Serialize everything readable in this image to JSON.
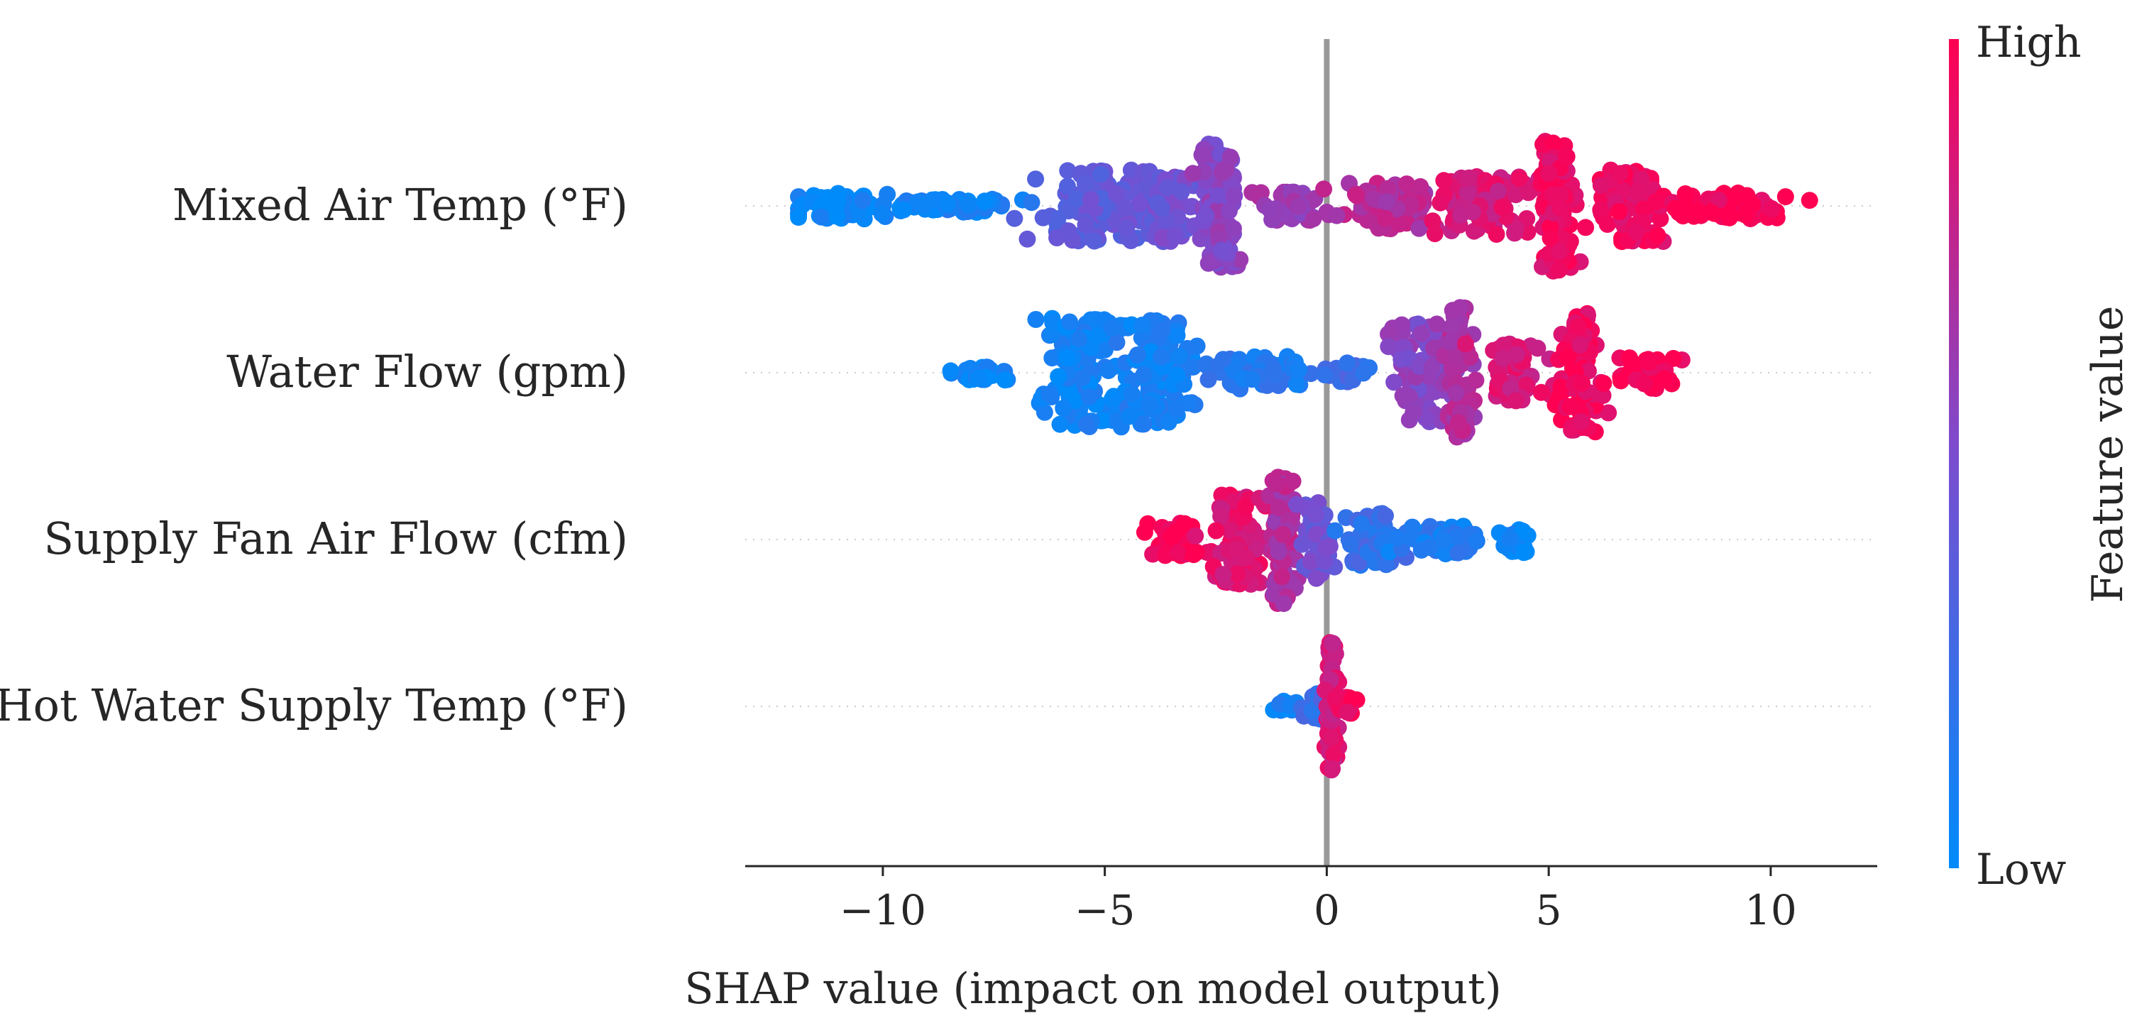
{
  "chart_data": {
    "type": "scatter",
    "subtype": "shap-beeswarm",
    "title": "",
    "xlabel": "SHAP value (impact on model output)",
    "xlim": [
      -13.1,
      12.4
    ],
    "xticks": [
      -10,
      -5,
      0,
      5,
      10
    ],
    "xtick_labels": [
      "−10",
      "−5",
      "0",
      "5",
      "10"
    ],
    "zero_line": 0,
    "features": [
      {
        "name": "Mixed Air Temp (°F)",
        "description": "Wide beeswarm; low values on left, high on right",
        "min": -11.9,
        "max": 11.0,
        "clusters": [
          {
            "center": -11.0,
            "spread": 0.9,
            "height": 0.2,
            "color": 0.02,
            "n": 70
          },
          {
            "center": -8.5,
            "spread": 1.5,
            "height": 0.1,
            "color": 0.08,
            "n": 50
          },
          {
            "center": -5.0,
            "spread": 1.2,
            "height": 0.55,
            "color": 0.38,
            "n": 110
          },
          {
            "center": -3.6,
            "spread": 0.6,
            "height": 0.55,
            "color": 0.45,
            "n": 80
          },
          {
            "center": -2.4,
            "spread": 0.4,
            "height": 0.95,
            "color": 0.55,
            "n": 120
          },
          {
            "center": -0.8,
            "spread": 0.8,
            "height": 0.22,
            "color": 0.62,
            "n": 50
          },
          {
            "center": 1.5,
            "spread": 0.9,
            "height": 0.35,
            "color": 0.72,
            "n": 80
          },
          {
            "center": 3.5,
            "spread": 1.0,
            "height": 0.45,
            "color": 0.85,
            "n": 100
          },
          {
            "center": 5.2,
            "spread": 0.3,
            "height": 1.0,
            "color": 0.93,
            "n": 110
          },
          {
            "center": 6.8,
            "spread": 0.7,
            "height": 0.55,
            "color": 0.95,
            "n": 90
          },
          {
            "center": 9.0,
            "spread": 1.2,
            "height": 0.2,
            "color": 0.98,
            "n": 70
          }
        ]
      },
      {
        "name": "Water Flow (gpm)",
        "description": "Bimodal; low values negative, high values positive",
        "min": -8.5,
        "max": 8.0,
        "clusters": [
          {
            "center": -7.8,
            "spread": 0.6,
            "height": 0.12,
            "color": 0.04,
            "n": 30
          },
          {
            "center": -5.5,
            "spread": 0.8,
            "height": 0.85,
            "color": 0.06,
            "n": 120
          },
          {
            "center": -3.8,
            "spread": 0.7,
            "height": 0.8,
            "color": 0.08,
            "n": 110
          },
          {
            "center": -1.5,
            "spread": 1.0,
            "height": 0.25,
            "color": 0.15,
            "n": 50
          },
          {
            "center": 0.5,
            "spread": 0.5,
            "height": 0.15,
            "color": 0.25,
            "n": 20
          },
          {
            "center": 2.2,
            "spread": 0.7,
            "height": 0.75,
            "color": 0.55,
            "n": 100
          },
          {
            "center": 3.0,
            "spread": 0.3,
            "height": 1.0,
            "color": 0.7,
            "n": 70
          },
          {
            "center": 4.3,
            "spread": 0.5,
            "height": 0.45,
            "color": 0.85,
            "n": 60
          },
          {
            "center": 5.7,
            "spread": 0.35,
            "height": 0.92,
            "color": 0.95,
            "n": 110
          },
          {
            "center": 7.2,
            "spread": 0.6,
            "height": 0.25,
            "color": 0.97,
            "n": 40
          }
        ]
      },
      {
        "name": "Supply Fan Air Flow (cfm)",
        "description": "High values negative, low values positive",
        "min": -4.1,
        "max": 4.8,
        "clusters": [
          {
            "center": -3.4,
            "spread": 0.5,
            "height": 0.25,
            "color": 0.98,
            "n": 50
          },
          {
            "center": -2.0,
            "spread": 0.5,
            "height": 0.7,
            "color": 0.88,
            "n": 90
          },
          {
            "center": -1.0,
            "spread": 0.25,
            "height": 1.0,
            "color": 0.7,
            "n": 90
          },
          {
            "center": -0.2,
            "spread": 0.35,
            "height": 0.6,
            "color": 0.45,
            "n": 60
          },
          {
            "center": 1.0,
            "spread": 0.5,
            "height": 0.4,
            "color": 0.22,
            "n": 60
          },
          {
            "center": 2.6,
            "spread": 0.8,
            "height": 0.22,
            "color": 0.12,
            "n": 60
          },
          {
            "center": 4.3,
            "spread": 0.3,
            "height": 0.2,
            "color": 0.03,
            "n": 30
          }
        ]
      },
      {
        "name": "Hot Water Supply Temp (°F)",
        "description": "Narrow distribution centered near zero",
        "min": -1.2,
        "max": 0.9,
        "clusters": [
          {
            "center": -0.9,
            "spread": 0.25,
            "height": 0.08,
            "color": 0.06,
            "n": 15
          },
          {
            "center": -0.2,
            "spread": 0.2,
            "height": 0.2,
            "color": 0.25,
            "n": 25
          },
          {
            "center": 0.1,
            "spread": 0.12,
            "height": 1.0,
            "color": 0.85,
            "n": 80
          },
          {
            "center": 0.5,
            "spread": 0.2,
            "height": 0.15,
            "color": 0.95,
            "n": 20
          }
        ]
      }
    ],
    "colorbar": {
      "label": "Feature value",
      "high_label": "High",
      "low_label": "Low",
      "high_color": "#ff0052",
      "low_color": "#008bfb"
    }
  }
}
